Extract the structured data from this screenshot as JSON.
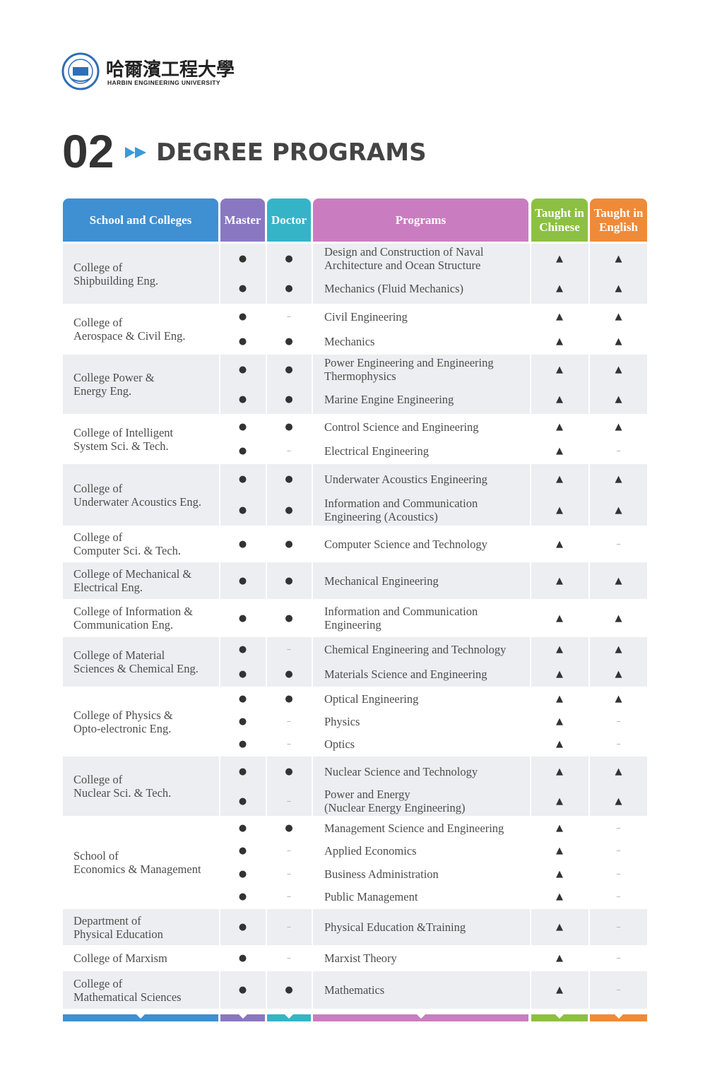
{
  "header": {
    "logo_chinese": "哈爾濱工程大學",
    "logo_english": "HARBIN ENGINEERING UNIVERSITY"
  },
  "section": {
    "number": "02",
    "title": "DEGREE PROGRAMS"
  },
  "table": {
    "columns": [
      "School and Colleges",
      "Master",
      "Doctor",
      "Programs",
      "Taught in Chinese",
      "Taught in English"
    ],
    "groups": [
      {
        "school": [
          "College of",
          "Shipbuilding Eng."
        ],
        "programs": [
          {
            "name": [
              "Design and Construction of Naval",
              "Architecture and Ocean Structure"
            ],
            "master": "●",
            "doctor": "●",
            "chinese": "▲",
            "english": "▲"
          },
          {
            "name": [
              "Mechanics (Fluid Mechanics)"
            ],
            "master": "●",
            "doctor": "●",
            "chinese": "▲",
            "english": "▲"
          }
        ]
      },
      {
        "school": [
          "College of",
          "Aerospace & Civil Eng."
        ],
        "programs": [
          {
            "name": [
              "Civil Engineering"
            ],
            "master": "●",
            "doctor": "–",
            "chinese": "▲",
            "english": "▲"
          },
          {
            "name": [
              "Mechanics"
            ],
            "master": "●",
            "doctor": "●",
            "chinese": "▲",
            "english": "▲"
          }
        ]
      },
      {
        "school": [
          "College Power &",
          "Energy Eng."
        ],
        "programs": [
          {
            "name": [
              "Power Engineering and Engineering",
              "Thermophysics"
            ],
            "master": "●",
            "doctor": "●",
            "chinese": "▲",
            "english": "▲"
          },
          {
            "name": [
              "Marine Engine Engineering"
            ],
            "master": "●",
            "doctor": "●",
            "chinese": "▲",
            "english": "▲"
          }
        ]
      },
      {
        "school": [
          "College of Intelligent",
          "System Sci. & Tech."
        ],
        "programs": [
          {
            "name": [
              "Control Science and Engineering"
            ],
            "master": "●",
            "doctor": "●",
            "chinese": "▲",
            "english": "▲"
          },
          {
            "name": [
              "Electrical Engineering"
            ],
            "master": "●",
            "doctor": "–",
            "chinese": "▲",
            "english": "–"
          }
        ]
      },
      {
        "school": [
          "College of",
          "Underwater Acoustics Eng."
        ],
        "programs": [
          {
            "name": [
              "Underwater Acoustics Engineering"
            ],
            "master": "●",
            "doctor": "●",
            "chinese": "▲",
            "english": "▲"
          },
          {
            "name": [
              "Information and Communication",
              "Engineering (Acoustics)"
            ],
            "master": "●",
            "doctor": "●",
            "chinese": "▲",
            "english": "▲"
          }
        ]
      },
      {
        "school": [
          "College of",
          "Computer Sci. & Tech."
        ],
        "programs": [
          {
            "name": [
              "Computer Science and Technology"
            ],
            "master": "●",
            "doctor": "●",
            "chinese": "▲",
            "english": "–"
          }
        ]
      },
      {
        "school": [
          "College of Mechanical &",
          "Electrical Eng."
        ],
        "programs": [
          {
            "name": [
              "Mechanical Engineering"
            ],
            "master": "●",
            "doctor": "●",
            "chinese": "▲",
            "english": "▲"
          }
        ]
      },
      {
        "school": [
          "College of Information &",
          "Communication Eng."
        ],
        "programs": [
          {
            "name": [
              "Information and Communication",
              "Engineering"
            ],
            "master": "●",
            "doctor": "●",
            "chinese": "▲",
            "english": "▲"
          }
        ]
      },
      {
        "school": [
          "College of Material",
          "Sciences & Chemical Eng."
        ],
        "programs": [
          {
            "name": [
              "Chemical Engineering and Technology"
            ],
            "master": "●",
            "doctor": "–",
            "chinese": "▲",
            "english": "▲"
          },
          {
            "name": [
              "Materials Science and Engineering"
            ],
            "master": "●",
            "doctor": "●",
            "chinese": "▲",
            "english": "▲"
          }
        ]
      },
      {
        "school": [
          "College of Physics &",
          "Opto-electronic Eng."
        ],
        "programs": [
          {
            "name": [
              "Optical Engineering"
            ],
            "master": "●",
            "doctor": "●",
            "chinese": "▲",
            "english": "▲"
          },
          {
            "name": [
              "Physics"
            ],
            "master": "●",
            "doctor": "–",
            "chinese": "▲",
            "english": "–"
          },
          {
            "name": [
              "Optics"
            ],
            "master": "●",
            "doctor": "–",
            "chinese": "▲",
            "english": "–"
          }
        ]
      },
      {
        "school": [
          "College of",
          "Nuclear Sci. & Tech."
        ],
        "programs": [
          {
            "name": [
              "Nuclear Science and Technology"
            ],
            "master": "●",
            "doctor": "●",
            "chinese": "▲",
            "english": "▲"
          },
          {
            "name": [
              "Power and Energy",
              "(Nuclear Energy Engineering)"
            ],
            "master": "●",
            "doctor": "–",
            "chinese": "▲",
            "english": "▲"
          }
        ]
      },
      {
        "school": [
          "School of",
          "Economics & Management"
        ],
        "programs": [
          {
            "name": [
              "Management Science and Engineering"
            ],
            "master": "●",
            "doctor": "●",
            "chinese": "▲",
            "english": "–"
          },
          {
            "name": [
              "Applied Economics"
            ],
            "master": "●",
            "doctor": "–",
            "chinese": "▲",
            "english": "–"
          },
          {
            "name": [
              "Business Administration"
            ],
            "master": "●",
            "doctor": "–",
            "chinese": "▲",
            "english": "–"
          },
          {
            "name": [
              "Public Management"
            ],
            "master": "●",
            "doctor": "–",
            "chinese": "▲",
            "english": "–"
          }
        ]
      },
      {
        "school": [
          "Department of",
          "Physical Education"
        ],
        "programs": [
          {
            "name": [
              "Physical Education &Training"
            ],
            "master": "●",
            "doctor": "–",
            "chinese": "▲",
            "english": "–"
          }
        ]
      },
      {
        "school": [
          "College of Marxism"
        ],
        "programs": [
          {
            "name": [
              "Marxist Theory"
            ],
            "master": "●",
            "doctor": "–",
            "chinese": "▲",
            "english": "–"
          }
        ]
      },
      {
        "school": [
          "College of",
          "Mathematical Sciences"
        ],
        "programs": [
          {
            "name": [
              "Mathematics"
            ],
            "master": "●",
            "doctor": "●",
            "chinese": "▲",
            "english": "–"
          }
        ]
      }
    ]
  }
}
